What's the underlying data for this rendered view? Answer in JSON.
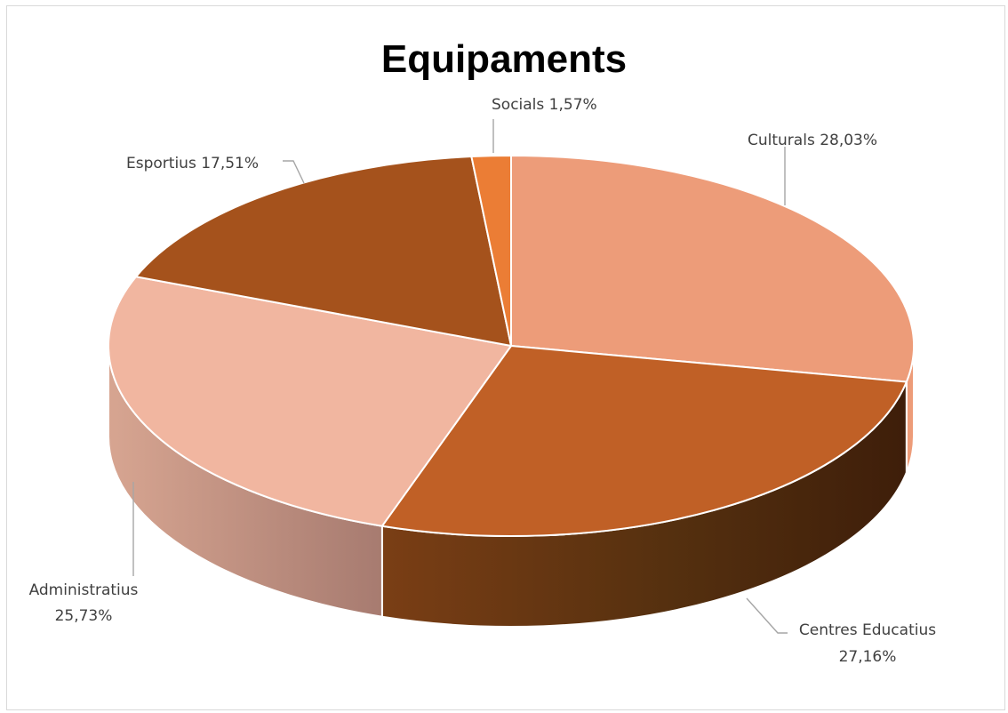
{
  "chart_data": {
    "type": "pie",
    "title": "Equipaments",
    "three_d": true,
    "slices": [
      {
        "name": "Culturals",
        "value": 28.03,
        "label": "Culturals 28,03%",
        "color": "#ED9C79"
      },
      {
        "name": "Centres Educatius",
        "value": 27.16,
        "label_lines": [
          "Centres Educatius",
          "27,16%"
        ],
        "color": "#C06026"
      },
      {
        "name": "Administratius",
        "value": 25.73,
        "label_lines": [
          "Administratius",
          "25,73%"
        ],
        "color": "#F1B6A0"
      },
      {
        "name": "Esportius",
        "value": 17.51,
        "label": "Esportius 17,51%",
        "color": "#A5521C"
      },
      {
        "name": "Socials",
        "value": 1.57,
        "label": "Socials 1,57%",
        "color": "#EB7D35"
      }
    ]
  }
}
